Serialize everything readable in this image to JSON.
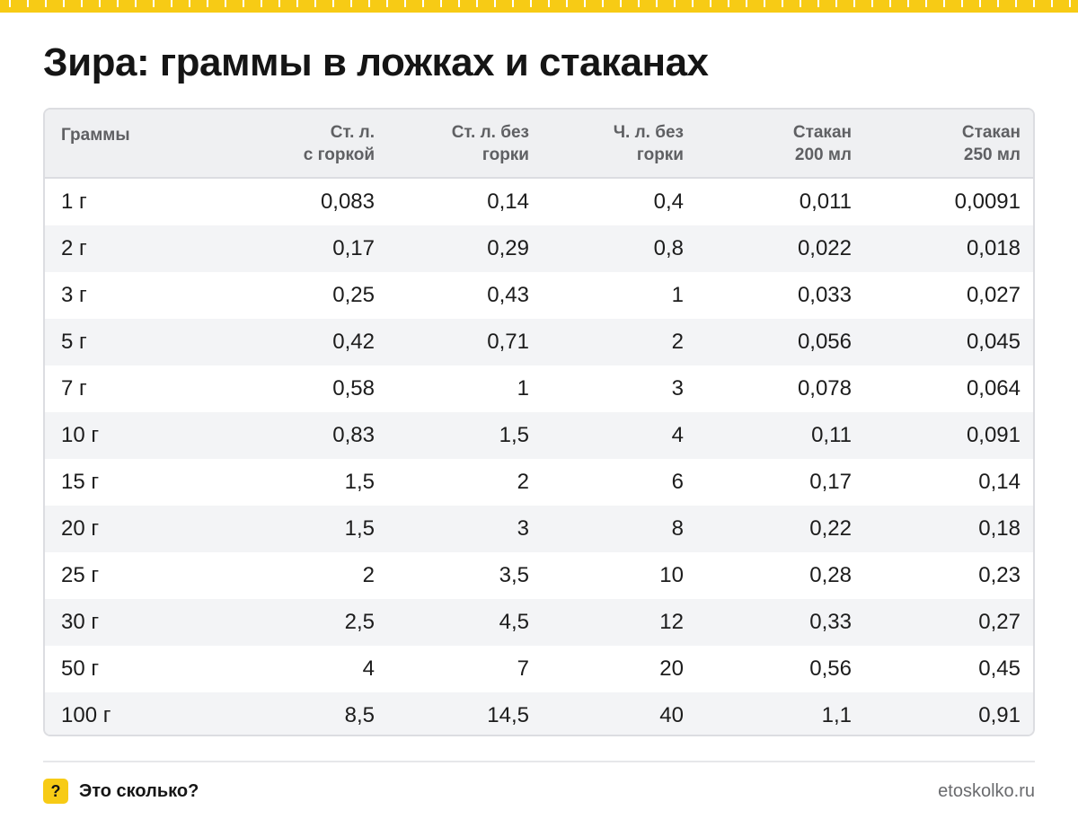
{
  "colors": {
    "accent": "#f7cb15",
    "header_bg": "#eff0f2",
    "row_alt_bg": "#f3f4f6",
    "border": "#dcdde1"
  },
  "page": {
    "title": "Зира: граммы в ложках и стаканах"
  },
  "table": {
    "headers": [
      "Граммы",
      "Ст. л.\nс горкой",
      "Ст. л. без\nгорки",
      "Ч. л. без\nгорки",
      "Стакан\n200 мл",
      "Стакан\n250 мл"
    ],
    "rows": [
      [
        "1 г",
        "0,083",
        "0,14",
        "0,4",
        "0,011",
        "0,0091"
      ],
      [
        "2 г",
        "0,17",
        "0,29",
        "0,8",
        "0,022",
        "0,018"
      ],
      [
        "3 г",
        "0,25",
        "0,43",
        "1",
        "0,033",
        "0,027"
      ],
      [
        "5 г",
        "0,42",
        "0,71",
        "2",
        "0,056",
        "0,045"
      ],
      [
        "7 г",
        "0,58",
        "1",
        "3",
        "0,078",
        "0,064"
      ],
      [
        "10 г",
        "0,83",
        "1,5",
        "4",
        "0,11",
        "0,091"
      ],
      [
        "15 г",
        "1,5",
        "2",
        "6",
        "0,17",
        "0,14"
      ],
      [
        "20 г",
        "1,5",
        "3",
        "8",
        "0,22",
        "0,18"
      ],
      [
        "25 г",
        "2",
        "3,5",
        "10",
        "0,28",
        "0,23"
      ],
      [
        "30 г",
        "2,5",
        "4,5",
        "12",
        "0,33",
        "0,27"
      ],
      [
        "50 г",
        "4",
        "7",
        "20",
        "0,56",
        "0,45"
      ],
      [
        "100 г",
        "8,5",
        "14,5",
        "40",
        "1,1",
        "0,91"
      ]
    ]
  },
  "footer": {
    "badge_glyph": "?",
    "brand": "Это сколько?",
    "site": "etoskolko.ru"
  }
}
